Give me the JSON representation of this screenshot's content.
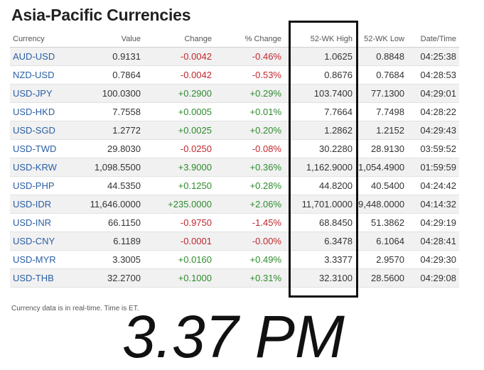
{
  "page": {
    "title": "Asia-Pacific Currencies",
    "footnote": "Currency data is in real-time. Time is ET.",
    "overlay_time": "3.37 PM"
  },
  "table": {
    "columns": [
      "Currency",
      "Value",
      "Change",
      "% Change",
      "52-WK High",
      "52-WK Low",
      "Date/Time"
    ],
    "rows": [
      {
        "currency": "AUD-USD",
        "value": "0.9131",
        "change": "-0.0042",
        "pct_change": "-0.46%",
        "high_52wk": "1.0625",
        "low_52wk": "0.8848",
        "time": "04:25:38"
      },
      {
        "currency": "NZD-USD",
        "value": "0.7864",
        "change": "-0.0042",
        "pct_change": "-0.53%",
        "high_52wk": "0.8676",
        "low_52wk": "0.7684",
        "time": "04:28:53"
      },
      {
        "currency": "USD-JPY",
        "value": "100.0300",
        "change": "+0.2900",
        "pct_change": "+0.29%",
        "high_52wk": "103.7400",
        "low_52wk": "77.1300",
        "time": "04:29:01"
      },
      {
        "currency": "USD-HKD",
        "value": "7.7558",
        "change": "+0.0005",
        "pct_change": "+0.01%",
        "high_52wk": "7.7664",
        "low_52wk": "7.7498",
        "time": "04:28:22"
      },
      {
        "currency": "USD-SGD",
        "value": "1.2772",
        "change": "+0.0025",
        "pct_change": "+0.20%",
        "high_52wk": "1.2862",
        "low_52wk": "1.2152",
        "time": "04:29:43"
      },
      {
        "currency": "USD-TWD",
        "value": "29.8030",
        "change": "-0.0250",
        "pct_change": "-0.08%",
        "high_52wk": "30.2280",
        "low_52wk": "28.9130",
        "time": "03:59:52"
      },
      {
        "currency": "USD-KRW",
        "value": "1,098.5500",
        "change": "+3.9000",
        "pct_change": "+0.36%",
        "high_52wk": "1,162.9000",
        "low_52wk": "1,054.4900",
        "time": "01:59:59"
      },
      {
        "currency": "USD-PHP",
        "value": "44.5350",
        "change": "+0.1250",
        "pct_change": "+0.28%",
        "high_52wk": "44.8200",
        "low_52wk": "40.5400",
        "time": "04:24:42"
      },
      {
        "currency": "USD-IDR",
        "value": "11,646.0000",
        "change": "+235.0000",
        "pct_change": "+2.06%",
        "high_52wk": "11,701.0000",
        "low_52wk": "9,448.0000",
        "time": "04:14:32"
      },
      {
        "currency": "USD-INR",
        "value": "66.1150",
        "change": "-0.9750",
        "pct_change": "-1.45%",
        "high_52wk": "68.8450",
        "low_52wk": "51.3862",
        "time": "04:29:19"
      },
      {
        "currency": "USD-CNY",
        "value": "6.1189",
        "change": "-0.0001",
        "pct_change": "-0.00%",
        "high_52wk": "6.3478",
        "low_52wk": "6.1064",
        "time": "04:28:41"
      },
      {
        "currency": "USD-MYR",
        "value": "3.3005",
        "change": "+0.0160",
        "pct_change": "+0.49%",
        "high_52wk": "3.3377",
        "low_52wk": "2.9570",
        "time": "04:29:30"
      },
      {
        "currency": "USD-THB",
        "value": "32.2700",
        "change": "+0.1000",
        "pct_change": "+0.31%",
        "high_52wk": "32.3100",
        "low_52wk": "28.5600",
        "time": "04:29:08"
      }
    ]
  },
  "colors": {
    "link": "#2a5fa5",
    "negative": "#c0272d",
    "positive": "#2e8b2e",
    "row_stripe": "#f1f1f1",
    "highlight_border": "#111111"
  }
}
